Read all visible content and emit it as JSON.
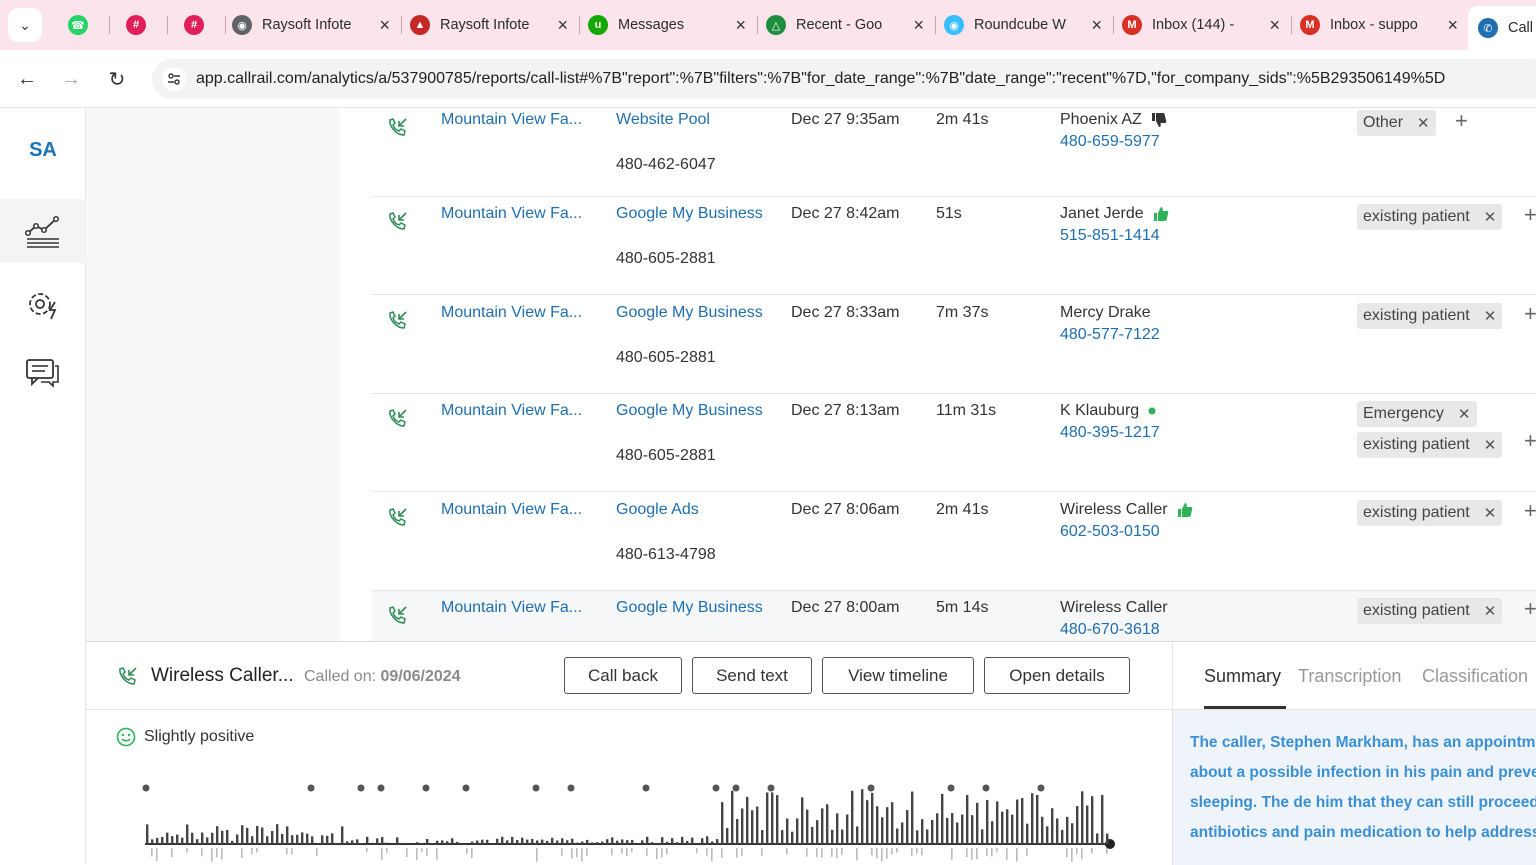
{
  "browser": {
    "tabs": [
      {
        "title": "",
        "favicon": "whatsapp-icon",
        "color": "#25d366"
      },
      {
        "title": "",
        "favicon": "slack-icon",
        "color": "#e01e5a"
      },
      {
        "title": "",
        "favicon": "slack-icon",
        "color": "#e01e5a"
      },
      {
        "title": "Raysoft Infote",
        "favicon": "globe-icon",
        "color": "#5f6368"
      },
      {
        "title": "Raysoft Infote",
        "favicon": "school-icon",
        "color": "#c62828"
      },
      {
        "title": "Messages",
        "favicon": "upwork-icon",
        "color": "#14a800"
      },
      {
        "title": "Recent - Goo",
        "favicon": "google-drive-icon",
        "color": "#1e8e3e"
      },
      {
        "title": "Roundcube W",
        "favicon": "roundcube-icon",
        "color": "#37beff"
      },
      {
        "title": "Inbox (144) -",
        "favicon": "gmail-icon",
        "color": "#d93025"
      },
      {
        "title": "Inbox - suppo",
        "favicon": "gmail-icon",
        "color": "#d93025"
      },
      {
        "title": "Call",
        "favicon": "callrail-icon",
        "color": "#1f6fb0"
      }
    ],
    "url": "app.callrail.com/analytics/a/537900785/reports/call-list#%7B\"report\":%7B\"filters\":%7B\"for_date_range\":%7B\"date_range\":\"recent\"%7D,\"for_company_sids\":%5B293506149%5D"
  },
  "sidebar": {
    "logo": "SA",
    "items": [
      {
        "name": "analytics-icon",
        "active": true
      },
      {
        "name": "settings-bolt-icon",
        "active": false
      },
      {
        "name": "chat-icon",
        "active": false
      }
    ]
  },
  "calls": [
    {
      "company": "Mountain View Fa...",
      "source": "Website Pool",
      "tracking_number": "480-462-6047",
      "date": "Dec 27 9:35am",
      "duration": "2m 41s",
      "caller_name": "Phoenix AZ",
      "caller_number": "480-659-5977",
      "indicator": "thumbs-down",
      "tags": [
        "Other"
      ]
    },
    {
      "company": "Mountain View Fa...",
      "source": "Google My Business",
      "tracking_number": "480-605-2881",
      "date": "Dec 27 8:42am",
      "duration": "51s",
      "caller_name": "Janet Jerde",
      "caller_number": "515-851-1414",
      "indicator": "thumbs-up",
      "tags": [
        "existing patient"
      ]
    },
    {
      "company": "Mountain View Fa...",
      "source": "Google My Business",
      "tracking_number": "480-605-2881",
      "date": "Dec 27 8:33am",
      "duration": "7m 37s",
      "caller_name": "Mercy Drake",
      "caller_number": "480-577-7122",
      "indicator": "",
      "tags": [
        "existing patient"
      ]
    },
    {
      "company": "Mountain View Fa...",
      "source": "Google My Business",
      "tracking_number": "480-605-2881",
      "date": "Dec 27 8:13am",
      "duration": "11m 31s",
      "caller_name": "K Klauburg",
      "caller_number": "480-395-1217",
      "indicator": "dot",
      "tags": [
        "Emergency",
        "existing patient"
      ]
    },
    {
      "company": "Mountain View Fa...",
      "source": "Google Ads",
      "tracking_number": "480-613-4798",
      "date": "Dec 27 8:06am",
      "duration": "2m 41s",
      "caller_name": "Wireless Caller",
      "caller_number": "602-503-0150",
      "indicator": "thumbs-up",
      "tags": [
        "existing patient"
      ]
    },
    {
      "company": "Mountain View Fa...",
      "source": "Google My Business",
      "tracking_number": "",
      "date": "Dec 27 8:00am",
      "duration": "5m 14s",
      "caller_name": "Wireless Caller",
      "caller_number": "480-670-3618",
      "indicator": "",
      "tags": [
        "existing patient"
      ]
    }
  ],
  "panel": {
    "caller_name": "Wireless Caller...",
    "called_on_label": "Called on:",
    "called_on_value": "09/06/2024",
    "buttons": {
      "call_back": "Call back",
      "send_text": "Send text",
      "view_timeline": "View timeline",
      "open_details": "Open details"
    },
    "sentiment": "Slightly positive",
    "tabs": [
      "Summary",
      "Transcription",
      "Classification"
    ],
    "summary": "The caller, Stephen Markham, has an appointment he is concerned about a possible infection in his pain and preventing him from sleeping. The de him that they can still proceed with the extract antibiotics and pain medication to help address"
  },
  "colors": {
    "link": "#1f6fb0",
    "positive": "#2eb35a",
    "summary_text": "#3b8fd4"
  }
}
